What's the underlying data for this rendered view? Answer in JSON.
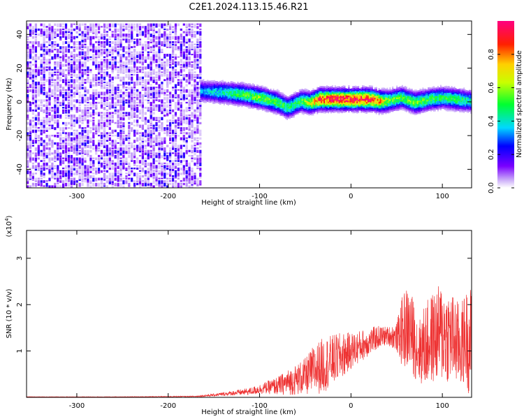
{
  "title": "C2E1.2024.113.15.46.R21",
  "colors": {
    "snr_line": "#ee3333",
    "axis": "#000000",
    "background": "#ffffff"
  },
  "chart_data": [
    {
      "type": "heatmap",
      "xlabel": "Height of straight line (km)",
      "ylabel": "Frequency (Hz)",
      "xlim": [
        -355,
        132
      ],
      "ylim": [
        -51,
        48
      ],
      "x_ticks": [
        -300,
        -200,
        -100,
        0,
        100
      ],
      "y_ticks": [
        -40,
        -20,
        0,
        20,
        40
      ],
      "colorbar": {
        "label": "Normalized spectral amplitude",
        "range": [
          0,
          1
        ],
        "ticks": [
          0.0,
          0.2,
          0.4,
          0.6,
          0.8
        ],
        "colormap": "rainbow (white-lavender low, violet, blue, cyan, green, yellow, red, magenta high)"
      },
      "regions": [
        {
          "x_range": [
            -355,
            -165
          ],
          "freq_range": [
            -51,
            48
          ],
          "amplitude": "low, broadband noise (0.05-0.3)"
        },
        {
          "x_range": [
            -165,
            132
          ],
          "freq_range": [
            -12,
            15
          ],
          "amplitude": "narrow band near 0 Hz, peaks ~1.0 at x -40 to 30"
        }
      ],
      "ridge": {
        "x": [
          -165,
          -140,
          -120,
          -100,
          -80,
          -70,
          -55,
          -45,
          -35,
          -20,
          0,
          20,
          30,
          40,
          55,
          70,
          85,
          100,
          115,
          130
        ],
        "center_freq": [
          7,
          6,
          5,
          3,
          0,
          -3,
          1,
          0,
          2,
          2,
          2,
          2,
          1,
          1,
          3,
          0,
          2,
          3,
          2,
          1
        ],
        "peak_amplitude": [
          0.35,
          0.45,
          0.55,
          0.6,
          0.55,
          0.5,
          0.55,
          0.7,
          0.95,
          1.0,
          1.0,
          1.0,
          0.85,
          0.6,
          0.55,
          0.6,
          0.55,
          0.5,
          0.55,
          0.45
        ]
      }
    },
    {
      "type": "line",
      "xlabel": "Height of straight line (km)",
      "ylabel": "SNR (10 * v/v)",
      "multiplier_label": "(x10",
      "multiplier_exp": "4",
      "multiplier_close": ")",
      "xlim": [
        -355,
        132
      ],
      "ylim": [
        0,
        3.6
      ],
      "x_ticks": [
        -300,
        -200,
        -100,
        0,
        100
      ],
      "y_ticks": [
        1,
        2,
        3
      ],
      "series": [
        {
          "x": [
            -355,
            -250,
            -170,
            -150,
            -130,
            -110,
            -95,
            -80,
            -65,
            -50,
            -40,
            -30,
            -20,
            -10,
            0,
            10,
            20,
            30,
            40,
            50,
            55,
            60,
            65,
            70,
            75,
            80,
            90,
            100,
            110,
            120,
            125,
            130
          ],
          "y": [
            0.01,
            0.01,
            0.02,
            0.05,
            0.09,
            0.13,
            0.2,
            0.25,
            0.35,
            0.45,
            0.6,
            0.7,
            0.8,
            0.9,
            1.0,
            1.1,
            1.2,
            1.3,
            1.33,
            1.3,
            1.4,
            1.5,
            1.45,
            1.2,
            1.0,
            1.1,
            1.3,
            1.4,
            1.3,
            1.1,
            1.3,
            1.2
          ],
          "amp": [
            0.005,
            0.005,
            0.01,
            0.03,
            0.05,
            0.08,
            0.12,
            0.2,
            0.3,
            0.4,
            0.55,
            0.6,
            0.55,
            0.5,
            0.4,
            0.35,
            0.3,
            0.25,
            0.2,
            0.3,
            0.7,
            0.9,
            0.9,
            0.8,
            0.7,
            0.9,
            1.0,
            1.1,
            1.0,
            0.9,
            1.0,
            1.2
          ]
        }
      ]
    }
  ]
}
